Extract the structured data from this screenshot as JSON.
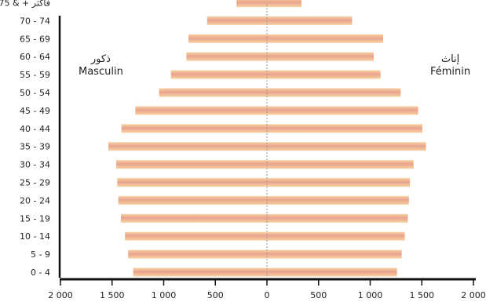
{
  "chart_data": {
    "type": "bar",
    "subtype": "population-pyramid",
    "orientation": "horizontal",
    "categories": [
      "0 - 4",
      "5 - 9",
      "10 - 14",
      "15 - 19",
      "20 - 24",
      "25 - 29",
      "30 - 34",
      "35 - 39",
      "40 - 44",
      "45 - 49",
      "50 - 54",
      "55 - 59",
      "60 - 64",
      "65 - 69",
      "70 - 74",
      "75 & + فأكثر"
    ],
    "series": [
      {
        "name": "Masculin",
        "name_ar": "ذكور",
        "side": "left",
        "values": [
          1295,
          1345,
          1375,
          1415,
          1440,
          1450,
          1460,
          1535,
          1410,
          1275,
          1045,
          930,
          780,
          760,
          580,
          295
        ]
      },
      {
        "name": "Féminin",
        "name_ar": "إناث",
        "side": "right",
        "values": [
          1260,
          1305,
          1335,
          1365,
          1375,
          1385,
          1420,
          1540,
          1505,
          1465,
          1295,
          1100,
          1035,
          1125,
          825,
          335
        ]
      }
    ],
    "xticks": [
      -2000,
      -1500,
      -1000,
      -500,
      0,
      500,
      1000,
      1500,
      2000
    ],
    "xtick_labels": [
      "2 000",
      "1 500",
      "1 000",
      "500",
      "0",
      "500",
      "1 000",
      "1 500",
      "2 000"
    ],
    "xlim": [
      -2000,
      2000
    ],
    "colors": {
      "bar_light": "#f8d2a1",
      "bar_dark": "#e8a38d",
      "axis": "#111111",
      "center_line": "#9a9a9a"
    },
    "grid": false
  }
}
